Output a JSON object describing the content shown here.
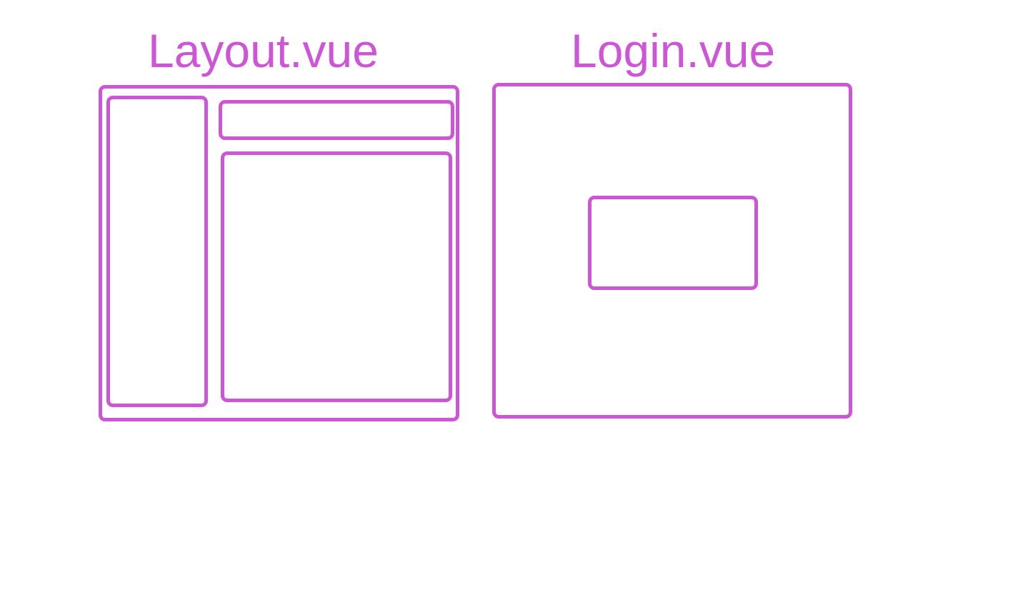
{
  "theme": {
    "stroke_color": "#CD56D6",
    "background": "#FFFFFF"
  },
  "diagrams": {
    "layout": {
      "title": "Layout.vue"
    },
    "login": {
      "title": "Login.vue"
    }
  }
}
